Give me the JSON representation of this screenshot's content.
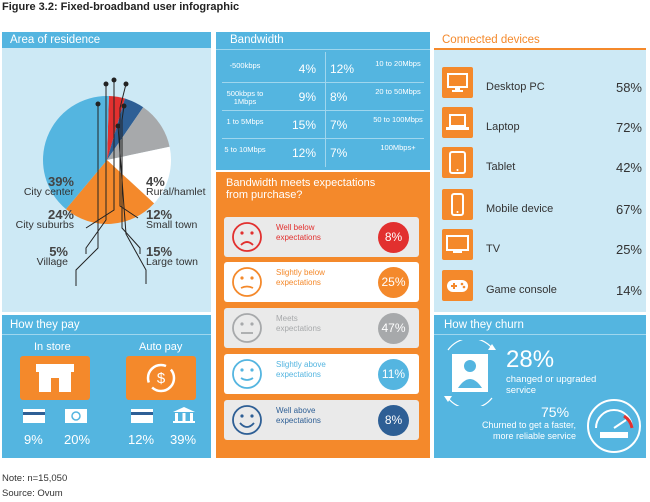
{
  "figure_title": "Figure 3.2: Fixed-broadband user infographic",
  "note": "Note: n=15,050",
  "source": "Source: Ovum",
  "colors": {
    "blue": "#54b5e0",
    "light_blue": "#cde9f5",
    "orange": "#f4892b",
    "dark_blue": "#2e5f95",
    "red": "#e2302f",
    "grey": "#a7a9ab"
  },
  "residence": {
    "header": "Area of residence",
    "items": [
      {
        "pct": "39%",
        "label": "City center"
      },
      {
        "pct": "24%",
        "label": "City suburbs"
      },
      {
        "pct": "5%",
        "label": "Village"
      },
      {
        "pct": "4%",
        "label": "Rural/hamlet"
      },
      {
        "pct": "12%",
        "label": "Small town"
      },
      {
        "pct": "15%",
        "label": "Large town"
      }
    ]
  },
  "chart_data": {
    "type": "pie",
    "title": "Area of residence",
    "categories": [
      "Rural/hamlet",
      "Village",
      "Small town",
      "Large town",
      "City suburbs",
      "City center"
    ],
    "values": [
      4,
      5,
      12,
      15,
      24,
      39
    ],
    "colors": [
      "#e2302f",
      "#2e5f95",
      "#a7a9ab",
      "#ffffff",
      "#f4892b",
      "#54b5e0"
    ]
  },
  "bandwidth": {
    "header": "Bandwidth",
    "rows": [
      {
        "left_label": "-500kbps",
        "left_pct": "4%",
        "right_pct": "12%",
        "right_label": "10 to 20Mbps"
      },
      {
        "left_label": "500kbps to 1Mbps",
        "left_pct": "9%",
        "right_pct": "8%",
        "right_label": "20 to 50Mbps"
      },
      {
        "left_label": "1 to 5Mbps",
        "left_pct": "15%",
        "right_pct": "7%",
        "right_label": "50 to 100Mbps"
      },
      {
        "left_label": "5 to 10Mbps",
        "left_pct": "12%",
        "right_pct": "7%",
        "right_label": "100Mbps+"
      }
    ]
  },
  "expectations": {
    "header_line1": "Bandwidth meets expectations",
    "header_line2": "from purchase?",
    "items": [
      {
        "label_line1": "Well below",
        "label_line2": "expectations",
        "pct": "8%",
        "color": "#e2302f"
      },
      {
        "label_line1": "Slightly below",
        "label_line2": "expectations",
        "pct": "25%",
        "color": "#f4892b"
      },
      {
        "label_line1": "Meets",
        "label_line2": "expectations",
        "pct": "47%",
        "color": "#a7a9ab"
      },
      {
        "label_line1": "Slightly above",
        "label_line2": "expectations",
        "pct": "11%",
        "color": "#54b5e0"
      },
      {
        "label_line1": "Well above",
        "label_line2": "expectations",
        "pct": "8%",
        "color": "#2e5f95"
      }
    ]
  },
  "devices": {
    "header": "Connected devices",
    "items": [
      {
        "label": "Desktop PC",
        "pct": "58%",
        "icon": "desktop-icon"
      },
      {
        "label": "Laptop",
        "pct": "72%",
        "icon": "laptop-icon"
      },
      {
        "label": "Tablet",
        "pct": "42%",
        "icon": "tablet-icon"
      },
      {
        "label": "Mobile device",
        "pct": "67%",
        "icon": "mobile-icon"
      },
      {
        "label": "TV",
        "pct": "25%",
        "icon": "tv-icon"
      },
      {
        "label": "Game console",
        "pct": "14%",
        "icon": "gamepad-icon"
      }
    ]
  },
  "pay": {
    "header": "How they pay",
    "in_store": {
      "label": "In store",
      "card_pct": "9%",
      "cash_pct": "20%"
    },
    "auto_pay": {
      "label": "Auto pay",
      "card_pct": "12%",
      "bank_pct": "39%"
    }
  },
  "churn": {
    "header": "How they churn",
    "big_pct": "28%",
    "big_text_line1": "changed or upgraded",
    "big_text_line2": "service",
    "small_pct": "75%",
    "small_text_line1": "Churned to get a faster,",
    "small_text_line2": "more reliable service"
  }
}
